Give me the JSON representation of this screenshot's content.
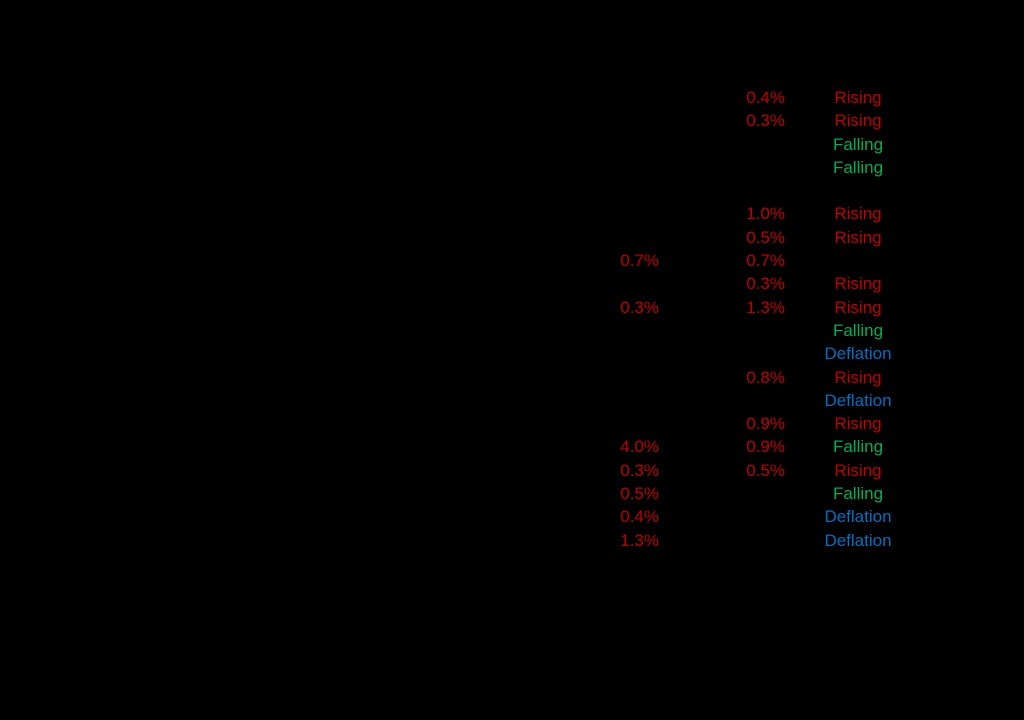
{
  "colors": {
    "background": "#000000",
    "rate_text": "#c00000",
    "rising": "#c00000",
    "falling": "#00b050",
    "deflation": "#0070c0"
  },
  "table": {
    "rows": [
      {
        "col_a": "",
        "col_b": "0.4%",
        "trend": "Rising",
        "trend_color": "red"
      },
      {
        "col_a": "",
        "col_b": "0.3%",
        "trend": "Rising",
        "trend_color": "red"
      },
      {
        "col_a": "",
        "col_b": "",
        "trend": "Falling",
        "trend_color": "green"
      },
      {
        "col_a": "",
        "col_b": "",
        "trend": "Falling",
        "trend_color": "green"
      },
      {
        "col_a": "",
        "col_b": "",
        "trend": "",
        "trend_color": ""
      },
      {
        "col_a": "",
        "col_b": "1.0%",
        "trend": "Rising",
        "trend_color": "red"
      },
      {
        "col_a": "",
        "col_b": "0.5%",
        "trend": "Rising",
        "trend_color": "red"
      },
      {
        "col_a": "0.7%",
        "col_b": "0.7%",
        "trend": "",
        "trend_color": ""
      },
      {
        "col_a": "",
        "col_b": "0.3%",
        "trend": "Rising",
        "trend_color": "red"
      },
      {
        "col_a": "0.3%",
        "col_b": "1.3%",
        "trend": "Rising",
        "trend_color": "red"
      },
      {
        "col_a": "",
        "col_b": "",
        "trend": "Falling",
        "trend_color": "green"
      },
      {
        "col_a": "",
        "col_b": "",
        "trend": "Deflation",
        "trend_color": "blue"
      },
      {
        "col_a": "",
        "col_b": "0.8%",
        "trend": "Rising",
        "trend_color": "red"
      },
      {
        "col_a": "",
        "col_b": "",
        "trend": "Deflation",
        "trend_color": "blue"
      },
      {
        "col_a": "",
        "col_b": "0.9%",
        "trend": "Rising",
        "trend_color": "red"
      },
      {
        "col_a": "4.0%",
        "col_b": "0.9%",
        "trend": "Falling",
        "trend_color": "green"
      },
      {
        "col_a": "0.3%",
        "col_b": "0.5%",
        "trend": "Rising",
        "trend_color": "red"
      },
      {
        "col_a": "0.5%",
        "col_b": "",
        "trend": "Falling",
        "trend_color": "green"
      },
      {
        "col_a": "0.4%",
        "col_b": "",
        "trend": "Deflation",
        "trend_color": "blue"
      },
      {
        "col_a": "1.3%",
        "col_b": "",
        "trend": "Deflation",
        "trend_color": "blue"
      }
    ]
  }
}
